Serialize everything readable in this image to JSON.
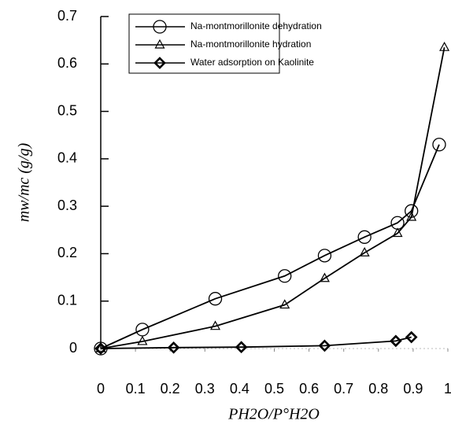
{
  "chart_data": {
    "type": "line",
    "x_label": "PH2O/P°H2O",
    "y_label": "mw/mc (g/g)",
    "xlim": [
      0,
      1
    ],
    "ylim": [
      0,
      0.7
    ],
    "xticks": [
      0,
      0.1,
      0.2,
      0.3,
      0.4,
      0.5,
      0.6,
      0.7,
      0.8,
      0.9,
      1
    ],
    "yticks": [
      0,
      0.1,
      0.2,
      0.3,
      0.4,
      0.5,
      0.6,
      0.7
    ],
    "grid": false,
    "legend": "top",
    "series": [
      {
        "name": "Na-montmorillonite dehydration",
        "color": "#000000",
        "marker": "circle",
        "x": [
          0,
          0.12,
          0.33,
          0.53,
          0.645,
          0.76,
          0.855,
          0.895,
          0.975
        ],
        "values": [
          0,
          0.04,
          0.105,
          0.153,
          0.196,
          0.235,
          0.265,
          0.29,
          0.43
        ]
      },
      {
        "name": "Na-montmorillonite hydration",
        "color": "#000000",
        "marker": "triangle",
        "x": [
          0,
          0.12,
          0.33,
          0.53,
          0.645,
          0.76,
          0.855,
          0.895,
          0.99
        ],
        "values": [
          0,
          0.015,
          0.047,
          0.092,
          0.148,
          0.202,
          0.243,
          0.277,
          0.635
        ]
      },
      {
        "name": "Water adsorption on Kaolinite",
        "color": "#000000",
        "marker": "diamond",
        "x": [
          0,
          0.21,
          0.405,
          0.645,
          0.85,
          0.895
        ],
        "values": [
          0,
          0.002,
          0.003,
          0.006,
          0.016,
          0.024
        ]
      }
    ]
  }
}
